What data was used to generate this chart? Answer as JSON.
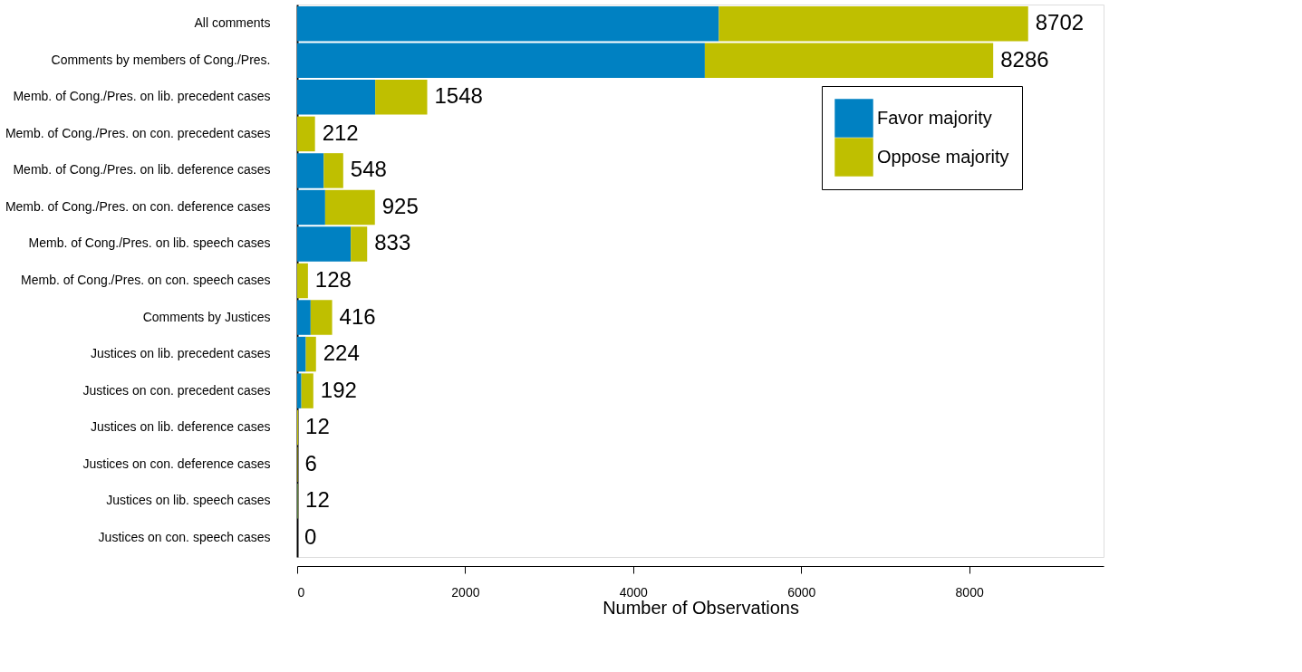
{
  "chart_data": {
    "type": "bar",
    "orientation": "horizontal",
    "stacked": true,
    "categories": [
      "All comments",
      "Comments by members of Cong./Pres.",
      "Memb. of Cong./Pres. on lib. precedent cases",
      "Memb. of Cong./Pres. on con. precedent cases",
      "Memb. of Cong./Pres. on lib. deference cases",
      "Memb. of Cong./Pres. on con. deference cases",
      "Memb. of Cong./Pres. on lib. speech cases",
      "Memb. of Cong./Pres. on con. speech cases",
      "Comments by Justices",
      "Justices on lib. precedent cases",
      "Justices on con. precedent cases",
      "Justices on lib. deference cases",
      "Justices on con. deference cases",
      "Justices on lib. speech cases",
      "Justices on con. speech cases"
    ],
    "series": [
      {
        "name": "Favor majority",
        "color": "#0081c2",
        "values": [
          5020,
          4853,
          929,
          0,
          316,
          333,
          638,
          0,
          160,
          103,
          50,
          0,
          0,
          6,
          0
        ]
      },
      {
        "name": "Oppose majority",
        "color": "#bfbf00",
        "values": [
          3682,
          3433,
          619,
          212,
          232,
          592,
          195,
          128,
          256,
          121,
          142,
          12,
          6,
          6,
          0
        ]
      }
    ],
    "totals": [
      "8702",
      "8286",
      "1548",
      "212",
      "548",
      "925",
      "833",
      "128",
      "416",
      "224",
      "192",
      "12",
      "6",
      "12",
      "0"
    ],
    "xlabel": "Number of Observations",
    "xlim": [
      0,
      9600
    ],
    "xticks": [
      0,
      2000,
      4000,
      6000,
      8000
    ],
    "legend": "top right",
    "grid": false
  }
}
